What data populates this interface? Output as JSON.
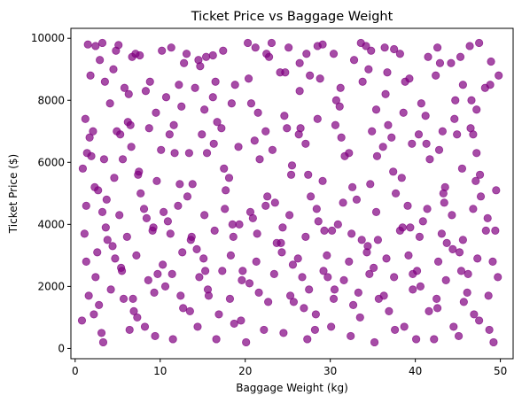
{
  "chart_data": {
    "type": "scatter",
    "title": "Ticket Price vs Baggage Weight",
    "xlabel": "Baggage Weight (kg)",
    "ylabel": "Ticket Price ($)",
    "xlim": [
      -0.5,
      51.5
    ],
    "ylim": [
      -330,
      10320
    ],
    "xticks": [
      0,
      10,
      20,
      30,
      40,
      50
    ],
    "yticks": [
      0,
      2000,
      4000,
      6000,
      8000,
      10000
    ],
    "xtick_labels": [
      "0",
      "10",
      "20",
      "30",
      "40",
      "50"
    ],
    "ytick_labels": [
      "0",
      "2000",
      "4000",
      "6000",
      "8000",
      "10000"
    ],
    "grid": false,
    "legend": "none",
    "marker_color": "#800080",
    "marker_alpha": 0.7,
    "series": [
      {
        "x": [
          1.5,
          2.4,
          3.2,
          4.8,
          5.1,
          6.7,
          7.1,
          7.6,
          10.2,
          11.3,
          13.1,
          14.5,
          15.4,
          16.2,
          17.4,
          20.3,
          21.2,
          22.5,
          23.1,
          25.1,
          26.4,
          27.2,
          28.5,
          29.1,
          30.4,
          33.6,
          34.2,
          34.8,
          36.4,
          37.5,
          38.2,
          41.5,
          42.6,
          44.2,
          45.3,
          46.4,
          47.5,
          48.9,
          1.8,
          3.5,
          5.8,
          8.3,
          12.2,
          14.1,
          16.5,
          20.4,
          24.1,
          27.6,
          31.2,
          33.8,
          36.7,
          39.3,
          42.4,
          45.6,
          48.2,
          49.8,
          1.2,
          4.1,
          6.2,
          9.5,
          12.5,
          15.2,
          18.4,
          21.5,
          24.6,
          28.5,
          31.1,
          35.4,
          38.6,
          41.2,
          44.6,
          47.2,
          2.1,
          5.3,
          8.7,
          11.6,
          17.2,
          22.4,
          26.3,
          30.6,
          37.2,
          40.4,
          43.2,
          46.8,
          1.4,
          3.4,
          6.6,
          10.1,
          13.4,
          16.3,
          19.2,
          23.2,
          27.1,
          32.2,
          36.2,
          39.6,
          42.8,
          47.2,
          0.9,
          2.3,
          4.6,
          7.4,
          9.6,
          13.8,
          18.1,
          25.4,
          29.1,
          34.7,
          38.4,
          43.5,
          47.1,
          49.5,
          1.3,
          3.2,
          5.2,
          8.1,
          10.4,
          12.1,
          15.2,
          17.6,
          20.6,
          22.4,
          25.2,
          28.4,
          31.5,
          35.4,
          39.1,
          41.4,
          44.3,
          46.8,
          1.1,
          3.6,
          6.1,
          9.1,
          11.2,
          13.6,
          16.4,
          18.6,
          21.4,
          24.4,
          27.1,
          30.2,
          32.5,
          35.6,
          38.2,
          40.5,
          43.1,
          45.6,
          48.3,
          1.3,
          2.6,
          4.7,
          7.2,
          10.3,
          12.6,
          15.1,
          18.3,
          21.3,
          24.3,
          26.2,
          29.6,
          32.2,
          34.3,
          36.6,
          39.2,
          42.7,
          45.2,
          47.3,
          49.1,
          2.4,
          5.5,
          8.6,
          11.4,
          14.6,
          17.3,
          19.6,
          23.4,
          26.7,
          29.2,
          31.6,
          34.6,
          37.5,
          40.2,
          43.6,
          46.2,
          1.6,
          4.2,
          6.8,
          9.3,
          12.4,
          15.6,
          18.2,
          21.6,
          25.3,
          27.5,
          30.4,
          33.3,
          36.3,
          39.7,
          42.5,
          46.1,
          48.6,
          2.2,
          7.3,
          13.5,
          19.5,
          28.3,
          33.5,
          41.6,
          47.5,
          3.1,
          9.4,
          16.6,
          24.5,
          32.4,
          40.1,
          45.1,
          0.8,
          6.4,
          14.4,
          22.2,
          30.1,
          37.6,
          44.5,
          3.3,
          11.5,
          20.1,
          27.3,
          35.2,
          42.2,
          49.2,
          5.6,
          15.5,
          25.5,
          35.5,
          45.5,
          2.7,
          12.3,
          22.6,
          32.6,
          43.3,
          8.4,
          18.5,
          28.6,
          38.5,
          48.5,
          4.4,
          14.3,
          24.2,
          34.4,
          44.4,
          10.6,
          20.5,
          30.5,
          40.6,
          6.3,
          16.2,
          26.4,
          36.5,
          46.6,
          1.7,
          11.1,
          21.1,
          31.3,
          41.3,
          7.5,
          17.5,
          27.4,
          37.4,
          47.6,
          3.7,
          13.2,
          23.5,
          33.1,
          43.4,
          9.2,
          19.3,
          29.3,
          39.4,
          49.4,
          5.4,
          15.3,
          25.6,
          35.1,
          45.4,
          2.8,
          12.7,
          22.7,
          32.7,
          42.6,
          8.2,
          18.7,
          28.2,
          38.7,
          48.7,
          4.5,
          14.7,
          24.7,
          34.5,
          44.7,
          10.7,
          20.7,
          30.7,
          40.7,
          6.5,
          16.7,
          26.5,
          36.8,
          46.5,
          1.9,
          11.7,
          21.7,
          31.7,
          41.7,
          7.7,
          17.7,
          27.7,
          37.7,
          47.7,
          3.8,
          13.7,
          23.7,
          33.7,
          43.7,
          9.7,
          19.7,
          29.7,
          39.7,
          49.7,
          5.7,
          15.7,
          25.7,
          35.7,
          45.7,
          2.9,
          12.8,
          22.8,
          32.8,
          42.9,
          8.8,
          18.8,
          28.8,
          38.8,
          48.8,
          4.9,
          14.9,
          24.9,
          34.9,
          44.9,
          10.9,
          20.9,
          30.9,
          40.9,
          6.9,
          16.9,
          26.9,
          36.9,
          46.9
        ],
        "y": [
          9800,
          9750,
          9850,
          9600,
          9780,
          9400,
          9500,
          9450,
          9600,
          9700,
          9500,
          9300,
          9400,
          9450,
          9600,
          9850,
          9700,
          9500,
          9850,
          9700,
          9200,
          9500,
          9750,
          9800,
          9500,
          9850,
          9750,
          9600,
          9700,
          9650,
          9500,
          9400,
          9700,
          9200,
          9400,
          9750,
          9850,
          9250,
          8800,
          8600,
          8400,
          8300,
          8500,
          8400,
          8600,
          8700,
          8900,
          8800,
          8400,
          8600,
          8900,
          8700,
          8800,
          8500,
          8400,
          8800,
          7400,
          7900,
          7300,
          7600,
          7800,
          7700,
          7900,
          7600,
          7500,
          7400,
          7800,
          7700,
          7600,
          7500,
          7400,
          7700,
          7000,
          6900,
          7100,
          7200,
          7100,
          7000,
          6900,
          7200,
          6800,
          6900,
          7000,
          6900,
          6300,
          6100,
          6500,
          6400,
          6300,
          6600,
          6500,
          6400,
          6600,
          6300,
          6500,
          6600,
          6400,
          6300,
          5800,
          5200,
          5500,
          5600,
          5400,
          5300,
          5500,
          5600,
          5400,
          5300,
          5500,
          5200,
          5400,
          5100,
          4600,
          4400,
          4300,
          4500,
          4400,
          4600,
          4300,
          4500,
          4400,
          4600,
          4300,
          4500,
          4700,
          4400,
          4600,
          4500,
          4300,
          4500,
          3700,
          3900,
          3600,
          3800,
          3700,
          3500,
          3800,
          3600,
          3700,
          3900,
          3600,
          3800,
          3700,
          3500,
          3800,
          3600,
          3700,
          3500,
          3800,
          2800,
          3100,
          2900,
          3000,
          2700,
          3100,
          2900,
          3000,
          2800,
          3100,
          2900,
          3000,
          2800,
          3100,
          2900,
          3000,
          2800,
          3100,
          2900,
          2800,
          2300,
          2500,
          2200,
          2400,
          2300,
          2500,
          2200,
          2400,
          2300,
          2500,
          2200,
          2400,
          2300,
          2500,
          2200,
          2400,
          1700,
          1900,
          1600,
          1800,
          1700,
          1900,
          1600,
          1800,
          1700,
          1900,
          1600,
          1800,
          1700,
          1900,
          1600,
          1800,
          1700,
          1100,
          1000,
          1200,
          900,
          1100,
          1000,
          1200,
          900,
          500,
          400,
          300,
          500,
          400,
          300,
          400,
          900,
          600,
          700,
          600,
          700,
          600,
          700,
          200,
          300,
          200,
          300,
          200,
          300,
          200,
          6100,
          6300,
          5900,
          6200,
          5800,
          5100,
          5300,
          4900,
          5200,
          5000,
          4200,
          4000,
          4100,
          3900,
          4200,
          3300,
          3200,
          3400,
          3300,
          3200,
          2000,
          2100,
          1900,
          2000,
          8200,
          8100,
          8300,
          8200,
          8000,
          6800,
          6900,
          6700,
          6800,
          6600,
          5700,
          5800,
          5600,
          5700,
          5600,
          4800,
          4900,
          4700,
          4800,
          4700,
          3900,
          4000,
          3800,
          3900,
          3800,
          2600,
          2500,
          2700,
          2600,
          2500,
          1400,
          1300,
          1500,
          1400,
          1300,
          700,
          800,
          600,
          700,
          600,
          9000,
          9100,
          8900,
          9000,
          8000,
          8100,
          7900,
          8000,
          7900,
          7200,
          7300,
          7100,
          7200,
          7100,
          6200,
          6300,
          6100,
          6200,
          6100,
          5000,
          5100,
          4900,
          5000,
          4900,
          3500,
          3600,
          3400,
          3500,
          3400,
          2400,
          2500,
          2300,
          2400,
          2300,
          1600,
          1700,
          1500,
          1600,
          1500,
          9300,
          9200,
          9400,
          9300,
          9200,
          8600,
          8500,
          8700,
          8600,
          8500,
          7000,
          6900,
          7100,
          7000,
          6900,
          4100,
          4200,
          4000,
          4100,
          1200,
          1100,
          1300,
          1200,
          1100
        ]
      }
    ]
  }
}
